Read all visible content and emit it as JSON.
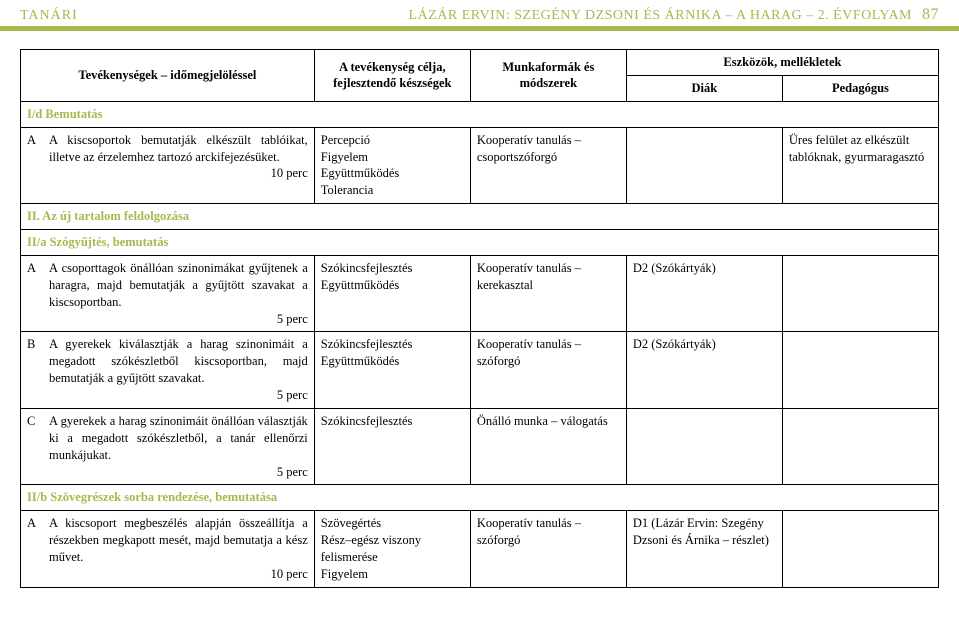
{
  "colors": {
    "accent": "#a8b84d",
    "text": "#000000",
    "border": "#000000",
    "background": "#ffffff"
  },
  "header": {
    "left": "TANÁRI",
    "right": "LÁZÁR ERVIN: SZEGÉNY DZSONI ÉS ÁRNIKA – A HARAG – 2. ÉVFOLYAM",
    "page": "87"
  },
  "table": {
    "head": {
      "activity": "Tevékenységek – időmegjelöléssel",
      "goal": "A tevékenység célja, fejlesztendő készségek",
      "method": "Munkaformák és módszerek",
      "tools": "Eszközök, mellékletek",
      "diak": "Diák",
      "ped": "Pedagógus"
    },
    "sections": [
      {
        "title": "I/d Bemutatás",
        "rows": [
          {
            "letter": "A",
            "activity": "A kiscsoportok bemutatják elkészült tablóikat, illetve az érzelemhez tartozó arckifejezésüket.",
            "timing": "10 perc",
            "goal": "Percepció\nFigyelem\nEgyüttműködés\nTolerancia",
            "method": "Kooperatív tanulás – csoportszóforgó",
            "diak": "",
            "ped": "Üres felület az elkészült tablóknak, gyurmaragasztó"
          }
        ]
      },
      {
        "title": "II. Az új tartalom feldolgozása",
        "rows": []
      },
      {
        "title": "II/a Szógyűjtés, bemutatás",
        "rows": [
          {
            "letter": "A",
            "activity": "A csoporttagok önállóan szinonimákat gyűjtenek a haragra, majd bemutatják a gyűjtött szavakat a kiscsoportban.",
            "timing": "5 perc",
            "goal": "Szókincsfejlesztés\nEgyüttműködés",
            "method": "Kooperatív tanulás – kerekasztal",
            "diak": "D2 (Szókártyák)",
            "ped": ""
          },
          {
            "letter": "B",
            "activity": "A gyerekek kiválasztják a harag szinonimáit a megadott szókészletből kiscsoportban, majd bemutatják a gyűjtött szavakat.",
            "timing": "5 perc",
            "goal": "Szókincsfejlesztés\nEgyüttműködés",
            "method": "Kooperatív tanulás – szóforgó",
            "diak": "D2 (Szókártyák)",
            "ped": ""
          },
          {
            "letter": "C",
            "activity": "A gyerekek a harag szinonimáit önállóan választják ki a megadott szókészletből, a tanár ellenőrzi munkájukat.",
            "timing": "5 perc",
            "goal": "Szókincsfejlesztés",
            "method": "Önálló munka – válogatás",
            "diak": "",
            "ped": ""
          }
        ]
      },
      {
        "title": "II/b Szövegrészek sorba rendezése, bemutatása",
        "rows": [
          {
            "letter": "A",
            "activity": "A kiscsoport megbeszélés alapján összeállítja a részekben megkapott mesét, majd bemutatja a kész művet.",
            "timing": "10 perc",
            "goal": "Szövegértés\nRész–egész viszony felismerése\nFigyelem",
            "method": "Kooperatív tanulás – szóforgó",
            "diak": "D1 (Lázár Ervin: Szegény Dzsoni és Árnika – részlet)",
            "ped": ""
          }
        ]
      }
    ]
  }
}
